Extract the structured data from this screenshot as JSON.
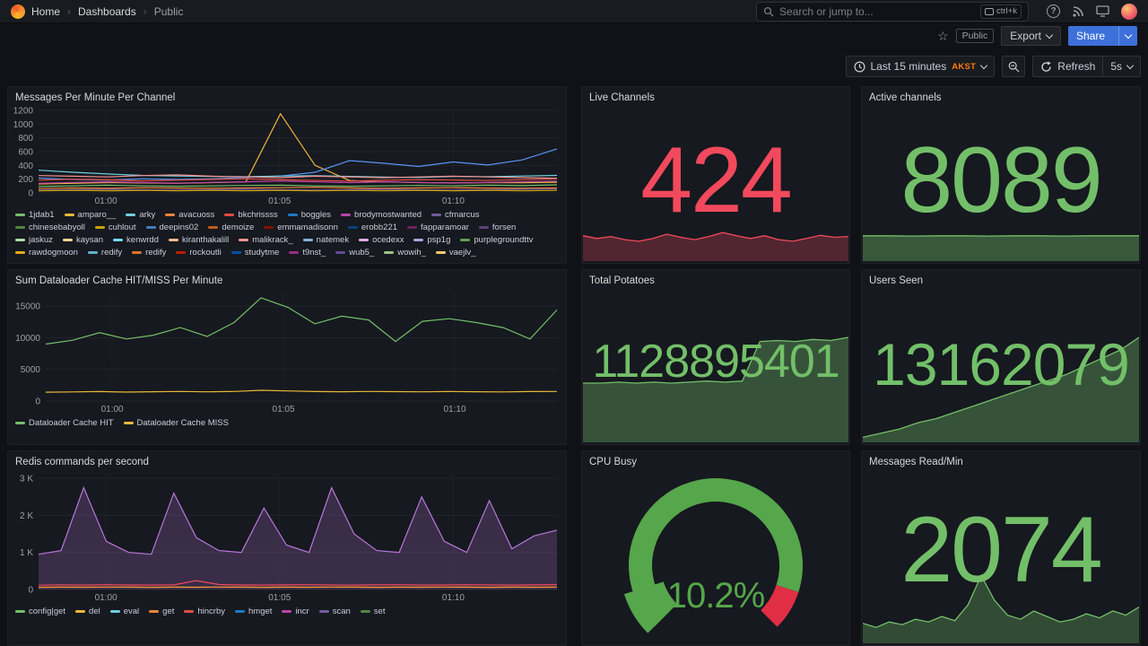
{
  "nav": {
    "breadcrumb": [
      "Home",
      "Dashboards",
      "Public"
    ],
    "separator": "›",
    "search_placeholder": "Search or jump to...",
    "search_shortcut": "ctrl+k"
  },
  "icons": {
    "star": "☆",
    "help": "?"
  },
  "actions": {
    "visibility_tag": "Public",
    "export_label": "Export",
    "share_label": "Share"
  },
  "timebar": {
    "range_label": "Last 15 minutes",
    "timezone": "AKST",
    "refresh_label": "Refresh",
    "interval_label": "5s"
  },
  "palette": [
    "#73BF69",
    "#EAB839",
    "#6ED0E0",
    "#EF843C",
    "#E24D42",
    "#1F78C1",
    "#BA43A9",
    "#705DA0",
    "#508642",
    "#CCA300",
    "#447EBC",
    "#C15C17",
    "#890F02",
    "#0A437C",
    "#6D1F62",
    "#584477",
    "#B7DBAB",
    "#F4D598",
    "#70DBED",
    "#F9BA8F",
    "#F29191",
    "#82B5D8",
    "#E5A8E2",
    "#AEA2E0",
    "#629E51",
    "#E5AC0E",
    "#64B0C8",
    "#E0752D",
    "#BF1B00",
    "#0A50A1",
    "#962D82",
    "#614D93",
    "#9AC48A",
    "#F2C96D"
  ],
  "chart_data": [
    {
      "id": "messages",
      "type": "line",
      "title": "Messages Per Minute Per Channel",
      "ymax": 1200,
      "padL": 30,
      "yticks": [
        {
          "v": 0,
          "l": "0"
        },
        {
          "v": 200,
          "l": "200"
        },
        {
          "v": 400,
          "l": "400"
        },
        {
          "v": 600,
          "l": "600"
        },
        {
          "v": 800,
          "l": "800"
        },
        {
          "v": 1000,
          "l": "1000"
        },
        {
          "v": 1200,
          "l": "1200"
        }
      ],
      "xticks": [
        {
          "f": 0.13,
          "l": "01:00"
        },
        {
          "f": 0.465,
          "l": "01:05"
        },
        {
          "f": 0.8,
          "l": "01:10"
        }
      ],
      "series": [
        {
          "name": "erobb221",
          "color": "#EAB839",
          "values": [
            130,
            140,
            150,
            145,
            140,
            150,
            160,
            1150,
            400,
            180,
            160,
            150,
            145,
            150,
            148,
            155
          ]
        },
        {
          "name": "forsen",
          "color": "#5794F2",
          "values": [
            215,
            195,
            185,
            205,
            195,
            205,
            225,
            245,
            300,
            470,
            430,
            385,
            450,
            405,
            480,
            640
          ]
        },
        {
          "name": "psp1g",
          "color": "#6ED0E0",
          "values": [
            330,
            300,
            275,
            255,
            245,
            240,
            235,
            245,
            250,
            240,
            230,
            225,
            240,
            235,
            245,
            255
          ]
        },
        {
          "name": "jaskuz",
          "color": "#E24D42",
          "values": [
            185,
            200,
            190,
            175,
            185,
            195,
            205,
            190,
            180,
            172,
            182,
            192,
            186,
            180,
            192,
            205
          ]
        },
        {
          "name": "kaysan",
          "color": "#BA43A9",
          "values": [
            140,
            152,
            162,
            150,
            142,
            152,
            162,
            172,
            160,
            150,
            162,
            152,
            142,
            152,
            162,
            172
          ]
        },
        {
          "name": "boggles",
          "color": "#73BF69",
          "values": [
            92,
            102,
            112,
            102,
            96,
            102,
            108,
            112,
            102,
            96,
            102,
            108,
            102,
            112,
            106,
            118
          ]
        },
        {
          "name": "arky",
          "color": "#EF843C",
          "values": [
            62,
            72,
            66,
            76,
            70,
            66,
            72,
            76,
            82,
            72,
            66,
            72,
            76,
            70,
            66,
            72
          ]
        },
        {
          "name": "cuhlout",
          "color": "#F29191",
          "values": [
            252,
            242,
            232,
            252,
            262,
            242,
            232,
            222,
            242,
            232,
            222,
            232,
            242,
            232,
            222,
            212
          ]
        },
        {
          "name": "natemek",
          "color": "#705DA0",
          "values": [
            42,
            46,
            52,
            46,
            42,
            46,
            52,
            46,
            42,
            46,
            52,
            46,
            42,
            46,
            52,
            56
          ]
        },
        {
          "name": "demoize",
          "color": "#CCA300",
          "values": [
            30,
            36,
            30,
            36,
            30,
            36,
            30,
            36,
            30,
            36,
            30,
            36,
            30,
            36,
            30,
            36
          ]
        }
      ],
      "legend": [
        "1jdab1",
        "amparo__",
        "arky",
        "avacuoss",
        "bkchrissss",
        "boggles",
        "brodymostwanted",
        "cfmarcus",
        "chinesebabyoll",
        "cuhlout",
        "deepins02",
        "demoize",
        "emmamadisonn",
        "erobb221",
        "fapparamoar",
        "forsen",
        "jaskuz",
        "kaysan",
        "kenwrdd",
        "kiranthakalill",
        "malikrack_",
        "natemek",
        "ocedexx",
        "psp1g",
        "purplegroundttv",
        "rawdogmoon",
        "redify",
        "redify",
        "rockoutli",
        "studytme",
        "t9nst_",
        "wub5_",
        "wowih_",
        "vaejlv_"
      ]
    },
    {
      "id": "dataloader",
      "type": "line",
      "title": "Sum Dataloader Cache HIT/MISS Per Minute",
      "ymax": 17000,
      "padL": 38,
      "yticks": [
        {
          "v": 0,
          "l": "0"
        },
        {
          "v": 5000,
          "l": "5000"
        },
        {
          "v": 10000,
          "l": "10000"
        },
        {
          "v": 15000,
          "l": "15000"
        }
      ],
      "xticks": [
        {
          "f": 0.13,
          "l": "01:00"
        },
        {
          "f": 0.465,
          "l": "01:05"
        },
        {
          "f": 0.8,
          "l": "01:10"
        }
      ],
      "series": [
        {
          "name": "Dataloader Cache HIT",
          "color": "#73BF69",
          "values": [
            9000,
            9600,
            10800,
            9800,
            10400,
            11600,
            10200,
            12400,
            16300,
            14800,
            12200,
            13400,
            12800,
            9400,
            12600,
            13000,
            12400,
            11600,
            9800,
            14400
          ]
        },
        {
          "name": "Dataloader Cache MISS",
          "color": "#EAB839",
          "values": [
            1400,
            1450,
            1500,
            1420,
            1480,
            1510,
            1460,
            1520,
            1700,
            1600,
            1500,
            1480,
            1520,
            1490,
            1460,
            1500,
            1480,
            1450,
            1500,
            1520
          ]
        }
      ],
      "legend": [
        "Dataloader Cache HIT",
        "Dataloader Cache MISS"
      ]
    },
    {
      "id": "redis",
      "type": "line",
      "title": "Redis commands per second",
      "ymax": 3100,
      "padL": 30,
      "yticks": [
        {
          "v": 0,
          "l": "0"
        },
        {
          "v": 1000,
          "l": "1 K"
        },
        {
          "v": 2000,
          "l": "2 K"
        },
        {
          "v": 3000,
          "l": "3 K"
        }
      ],
      "xticks": [
        {
          "f": 0.13,
          "l": "01:00"
        },
        {
          "f": 0.465,
          "l": "01:05"
        },
        {
          "f": 0.8,
          "l": "01:10"
        }
      ],
      "series": [
        {
          "name": "get",
          "color": "#B877D9",
          "fill": 0.22,
          "values": [
            950,
            1050,
            2750,
            1300,
            1000,
            950,
            2600,
            1400,
            1050,
            1000,
            2200,
            1200,
            1000,
            2750,
            1500,
            1050,
            1000,
            2500,
            1300,
            1000,
            2400,
            1100,
            1450,
            1600
          ]
        },
        {
          "name": "del",
          "color": "#F2495C",
          "values": [
            115,
            125,
            118,
            128,
            122,
            118,
            124,
            240,
            132,
            122,
            118,
            124,
            128,
            122,
            118,
            124,
            128,
            118,
            122,
            128,
            122,
            118,
            124,
            130
          ]
        },
        {
          "name": "set",
          "color": "#FF9830",
          "values": [
            58,
            64,
            60,
            66,
            62,
            58,
            64,
            60,
            66,
            62,
            58,
            64,
            60,
            66,
            62,
            58,
            64,
            60,
            66,
            62,
            58,
            64,
            60,
            66
          ]
        }
      ],
      "legend": [
        "config|get",
        "del",
        "eval",
        "get",
        "hincrby",
        "hmget",
        "incr",
        "scan",
        "set"
      ]
    }
  ],
  "stats": {
    "live_channels": {
      "title": "Live Channels",
      "value": "424",
      "color": "#F2495C",
      "fill_opacity": 0.28,
      "spark": [
        0.62,
        0.55,
        0.6,
        0.52,
        0.48,
        0.55,
        0.66,
        0.58,
        0.52,
        0.6,
        0.7,
        0.62,
        0.55,
        0.62,
        0.52,
        0.48,
        0.55,
        0.63,
        0.58,
        0.6
      ]
    },
    "active_channels": {
      "title": "Active channels",
      "value": "8089",
      "color": "#73BF69",
      "fill_opacity": 0.38,
      "spark": [
        0.97,
        0.97,
        0.96,
        0.97,
        0.97,
        0.96,
        0.97,
        0.97,
        0.96,
        0.97,
        0.97,
        0.97
      ]
    },
    "total_potatoes": {
      "title": "Total Potatoes",
      "value": "1128895401",
      "color": "#73BF69",
      "fill_opacity": 0.35,
      "spark": [
        0.56,
        0.56,
        0.57,
        0.56,
        0.57,
        0.56,
        0.57,
        0.58,
        0.57,
        0.58,
        0.96,
        0.97,
        0.96,
        0.98,
        0.97,
        1.0
      ]
    },
    "users_seen": {
      "title": "Users Seen",
      "value": "13162079",
      "color": "#73BF69",
      "fill_opacity": 0.35,
      "spark": [
        0.04,
        0.08,
        0.12,
        0.18,
        0.22,
        0.28,
        0.34,
        0.4,
        0.46,
        0.52,
        0.58,
        0.64,
        0.72,
        0.8,
        0.88,
        1.0
      ]
    },
    "cpu_busy": {
      "title": "CPU Busy",
      "value": "10.2%",
      "gauge": {
        "percent": 10.2,
        "threshold": 90,
        "color": "#56A64B",
        "threshold_color": "#E02F44"
      }
    },
    "messages_read": {
      "title": "Messages Read/Min",
      "value": "2074",
      "color": "#73BF69",
      "fill_opacity": 0.3,
      "spark": [
        0.28,
        0.22,
        0.3,
        0.26,
        0.34,
        0.3,
        0.38,
        0.32,
        0.55,
        0.98,
        0.62,
        0.4,
        0.34,
        0.46,
        0.38,
        0.3,
        0.34,
        0.42,
        0.36,
        0.46,
        0.4,
        0.52
      ]
    }
  }
}
